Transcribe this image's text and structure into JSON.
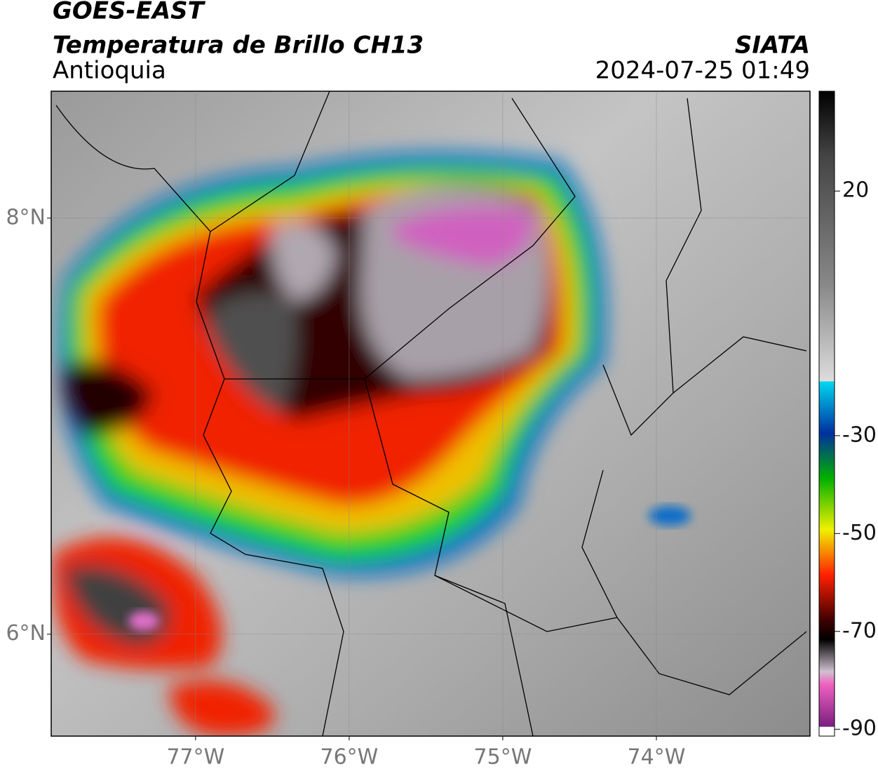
{
  "header": {
    "title": "GOES-EAST",
    "subtitle": "Temperatura de Brillo CH13",
    "region": "Antioquia",
    "source": "SIATA",
    "datetime": "2024-07-25 01:49"
  },
  "map": {
    "lon_range": [
      -77.94,
      -73.0
    ],
    "lat_range": [
      5.51,
      8.61
    ],
    "lon_ticks": [
      {
        "value": -77,
        "label": "77°W"
      },
      {
        "value": -76,
        "label": "76°W"
      },
      {
        "value": -75,
        "label": "75°W"
      },
      {
        "value": -74,
        "label": "74°W"
      }
    ],
    "lat_ticks": [
      {
        "value": 8,
        "label": "8°N"
      },
      {
        "value": 6,
        "label": "6°N"
      }
    ]
  },
  "colorbar": {
    "range": [
      40.4,
      -91.4
    ],
    "ticks": [
      20,
      -30,
      -50,
      -70,
      -90
    ]
  }
}
